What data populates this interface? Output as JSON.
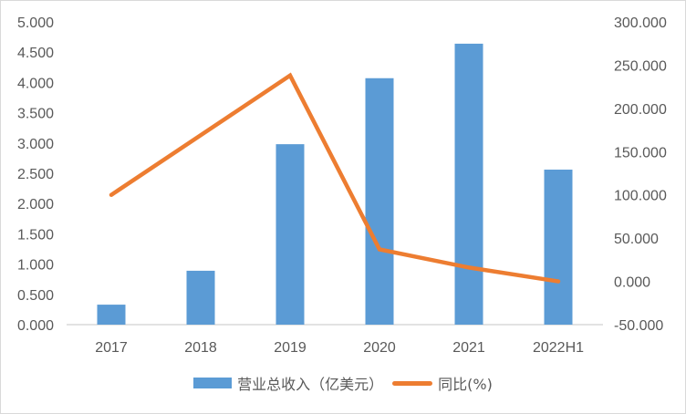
{
  "chart_data": {
    "type": "bar+line",
    "title": "",
    "categories": [
      "2017",
      "2018",
      "2019",
      "2020",
      "2021",
      "2022H1"
    ],
    "series": [
      {
        "name": "营业总收入（亿美元）",
        "type": "bar",
        "axis": "left",
        "color": "#5b9bd5",
        "values": [
          0.33,
          0.89,
          2.98,
          4.07,
          4.64,
          2.56
        ]
      },
      {
        "name": "同比(%)",
        "type": "line",
        "axis": "right",
        "color": "#ed7d31",
        "values": [
          100,
          169,
          238,
          37,
          16,
          0
        ]
      }
    ],
    "left_axis": {
      "min": 0,
      "max": 5,
      "step": 0.5,
      "ticks": [
        "0.000",
        "0.500",
        "1.000",
        "1.500",
        "2.000",
        "2.500",
        "3.000",
        "3.500",
        "4.000",
        "4.500",
        "5.000"
      ]
    },
    "right_axis": {
      "min": -50,
      "max": 300,
      "step": 50,
      "ticks": [
        "-50.000",
        "0.000",
        "50.000",
        "100.000",
        "150.000",
        "200.000",
        "250.000",
        "300.000"
      ]
    },
    "xlabel": "",
    "ylabel": "",
    "grid": false,
    "legend_position": "bottom"
  },
  "legend": {
    "bar_label": "营业总收入（亿美元）",
    "line_label": "同比(%)"
  }
}
